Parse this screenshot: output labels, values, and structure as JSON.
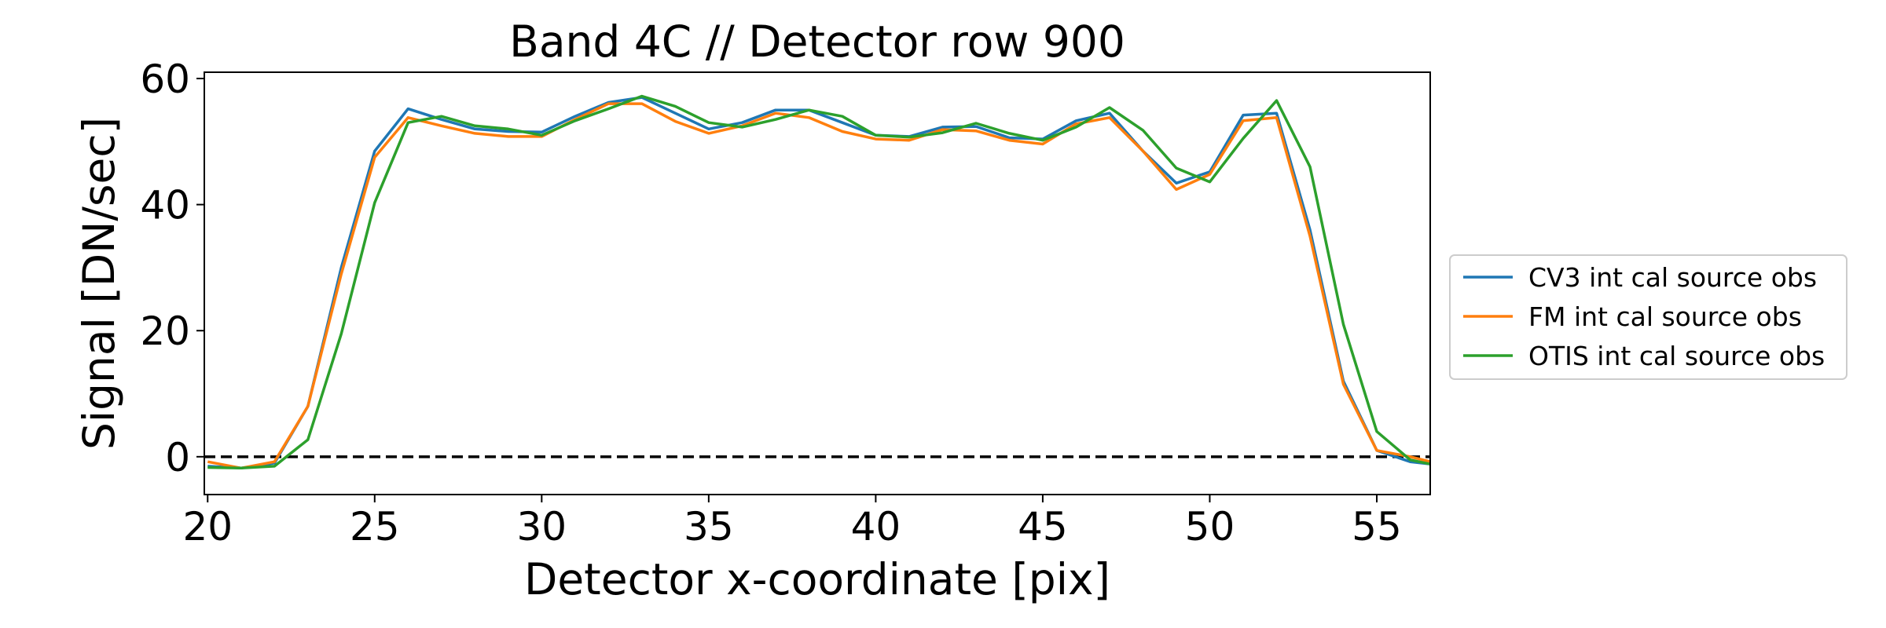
{
  "chart_data": {
    "type": "line",
    "title": "Band 4C // Detector row 900",
    "xlabel": "Detector x-coordinate [pix]",
    "ylabel": "Signal [DN/sec]",
    "xlim": [
      19.9,
      56.6
    ],
    "ylim": [
      -6,
      61
    ],
    "xticks": [
      20,
      25,
      30,
      35,
      40,
      45,
      50,
      55
    ],
    "yticks": [
      0,
      20,
      40,
      60
    ],
    "grid": false,
    "legend_position": "right-outside",
    "reference_line": {
      "y": 0,
      "style": "dashed",
      "color": "#000000"
    },
    "x": [
      20,
      21,
      22,
      23,
      24,
      25,
      26,
      27,
      28,
      29,
      30,
      31,
      32,
      33,
      34,
      35,
      36,
      37,
      38,
      39,
      40,
      41,
      42,
      43,
      44,
      45,
      46,
      47,
      48,
      49,
      50,
      51,
      52,
      53,
      54,
      55,
      56,
      57
    ],
    "series": [
      {
        "name": "CV3 int cal source obs",
        "color": "#1f77b4",
        "values": [
          -1.5,
          -1.8,
          -1.0,
          8.0,
          30.0,
          48.5,
          55.2,
          53.5,
          52.0,
          51.6,
          51.5,
          54.0,
          56.2,
          57.0,
          54.5,
          52.0,
          53.0,
          55.0,
          55.0,
          53.0,
          51.0,
          50.8,
          52.3,
          52.4,
          50.6,
          50.4,
          53.3,
          54.5,
          48.5,
          43.4,
          45.2,
          54.2,
          54.5,
          36.0,
          12.0,
          1.0,
          -0.8,
          -1.4
        ]
      },
      {
        "name": "FM int cal source obs",
        "color": "#ff7f0e",
        "values": [
          -0.8,
          -1.8,
          -0.8,
          8.0,
          29.0,
          47.5,
          53.8,
          52.5,
          51.3,
          50.8,
          50.8,
          53.5,
          56.0,
          56.0,
          53.2,
          51.3,
          52.5,
          54.5,
          53.8,
          51.6,
          50.4,
          50.2,
          51.9,
          51.7,
          50.2,
          49.6,
          52.8,
          53.8,
          48.5,
          42.4,
          44.8,
          53.3,
          53.8,
          35.0,
          11.5,
          1.0,
          0.0,
          -1.3
        ]
      },
      {
        "name": "OTIS int cal source obs",
        "color": "#2ca02c",
        "values": [
          -1.7,
          -1.8,
          -1.5,
          2.7,
          19.5,
          40.3,
          53.0,
          54.0,
          52.5,
          52.0,
          51.0,
          53.3,
          55.2,
          57.2,
          55.6,
          53.0,
          52.3,
          53.5,
          55.0,
          54.0,
          51.0,
          50.7,
          51.4,
          52.9,
          51.3,
          50.2,
          52.3,
          55.4,
          51.8,
          45.8,
          43.6,
          50.5,
          56.5,
          46.0,
          21.0,
          4.0,
          -0.5,
          -1.6
        ]
      }
    ]
  }
}
